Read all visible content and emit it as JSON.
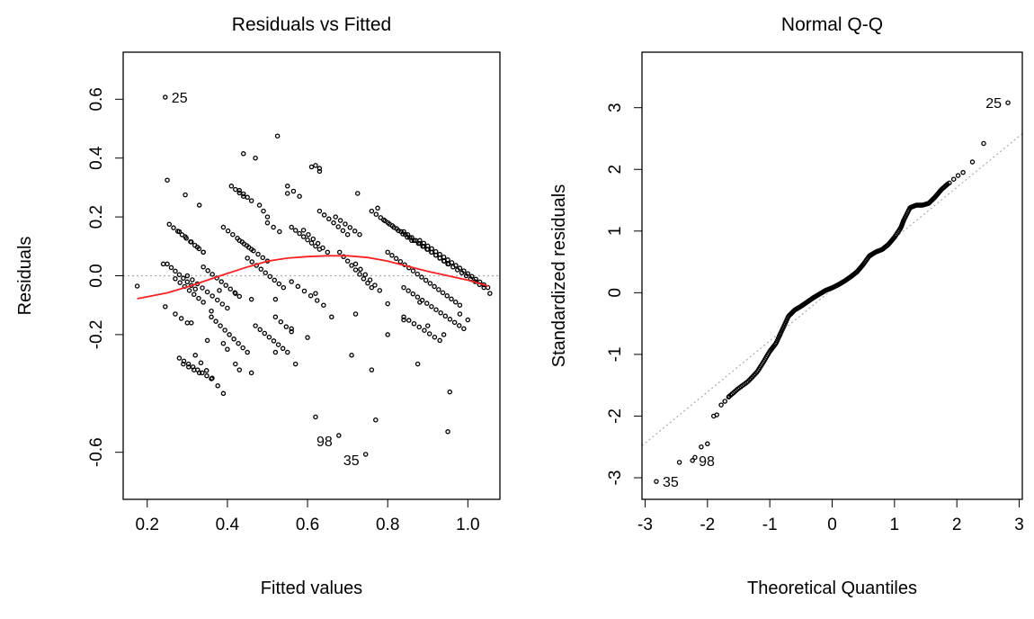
{
  "chart_data": [
    {
      "type": "scatter",
      "title": "Residuals vs Fitted",
      "xlabel": "Fitted values",
      "ylabel": "Residuals",
      "xlim": [
        0.14,
        1.08
      ],
      "ylim": [
        -0.76,
        0.76
      ],
      "xticks": [
        "0.2",
        "0.4",
        "0.6",
        "0.8",
        "1.0"
      ],
      "xtick_values": [
        0.2,
        0.4,
        0.6,
        0.8,
        1.0
      ],
      "yticks": [
        "-0.6",
        "-0.2",
        "0.0",
        "0.2",
        "0.4",
        "0.6"
      ],
      "ytick_values": [
        -0.6,
        -0.2,
        0.0,
        0.2,
        0.4,
        0.6
      ],
      "reference_line": {
        "y": 0,
        "style": "dotted",
        "color": "#aaaaaa"
      },
      "smoother": {
        "color": "#ff2020",
        "points": [
          [
            0.175,
            -0.078
          ],
          [
            0.25,
            -0.058
          ],
          [
            0.3,
            -0.038
          ],
          [
            0.35,
            -0.015
          ],
          [
            0.4,
            0.008
          ],
          [
            0.45,
            0.03
          ],
          [
            0.5,
            0.05
          ],
          [
            0.55,
            0.06
          ],
          [
            0.6,
            0.065
          ],
          [
            0.65,
            0.068
          ],
          [
            0.7,
            0.068
          ],
          [
            0.75,
            0.062
          ],
          [
            0.8,
            0.05
          ],
          [
            0.85,
            0.032
          ],
          [
            0.9,
            0.015
          ],
          [
            0.95,
            0.0
          ],
          [
            1.0,
            -0.015
          ],
          [
            1.05,
            -0.035
          ]
        ]
      },
      "point_labels": [
        {
          "label": "25",
          "x": 0.245,
          "y": 0.607
        },
        {
          "label": "98",
          "x": 0.678,
          "y": -0.543
        },
        {
          "label": "35",
          "x": 0.745,
          "y": -0.607
        }
      ],
      "series": [
        {
          "points": [
            [
              0.175,
              -0.035
            ],
            [
              0.245,
              0.607
            ],
            [
              0.25,
              0.325
            ],
            [
              0.24,
              0.04
            ],
            [
              0.245,
              -0.105
            ],
            [
              0.295,
              0.275
            ],
            [
              0.33,
              0.24
            ],
            [
              0.44,
              0.415
            ],
            [
              0.47,
              0.4
            ],
            [
              0.525,
              0.475
            ],
            [
              0.55,
              0.28
            ],
            [
              0.62,
              0.375
            ],
            [
              0.63,
              0.365
            ],
            [
              0.725,
              0.28
            ],
            [
              0.775,
              0.23
            ],
            [
              0.62,
              -0.06
            ],
            [
              0.8,
              -0.095
            ],
            [
              0.875,
              -0.3
            ],
            [
              0.955,
              -0.395
            ],
            [
              0.95,
              -0.53
            ],
            [
              0.62,
              -0.48
            ],
            [
              0.678,
              -0.543
            ],
            [
              0.745,
              -0.607
            ],
            [
              0.77,
              -0.49
            ],
            [
              1.055,
              -0.06
            ],
            [
              0.71,
              -0.27
            ],
            [
              0.76,
              -0.32
            ],
            [
              0.52,
              -0.26
            ],
            [
              0.57,
              -0.3
            ],
            [
              0.46,
              -0.33
            ],
            [
              0.35,
              -0.22
            ],
            [
              0.31,
              -0.16
            ],
            [
              0.36,
              -0.12
            ],
            [
              0.8,
              -0.2
            ],
            [
              0.84,
              -0.15
            ],
            [
              0.9,
              -0.17
            ],
            [
              0.94,
              -0.2
            ],
            [
              0.98,
              -0.13
            ],
            [
              1.0,
              -0.15
            ],
            [
              0.88,
              -0.09
            ],
            [
              0.56,
              -0.18
            ],
            [
              0.6,
              -0.21
            ],
            [
              0.66,
              -0.14
            ],
            [
              0.72,
              -0.13
            ],
            [
              0.52,
              -0.08
            ],
            [
              0.46,
              -0.08
            ],
            [
              0.42,
              -0.06
            ],
            [
              0.38,
              -0.05
            ]
          ]
        },
        {
          "segments": [
            {
              "x0": 0.255,
              "y0": 0.175,
              "x1": 0.34,
              "y1": 0.08,
              "n": 9
            },
            {
              "x0": 0.28,
              "y0": 0.15,
              "x1": 0.34,
              "y1": 0.08,
              "n": 5
            },
            {
              "x0": 0.25,
              "y0": 0.04,
              "x1": 0.32,
              "y1": -0.045,
              "n": 8
            },
            {
              "x0": 0.27,
              "y0": -0.01,
              "x1": 0.34,
              "y1": -0.09,
              "n": 7
            },
            {
              "x0": 0.3,
              "y0": 0.0,
              "x1": 0.4,
              "y1": -0.11,
              "n": 9
            },
            {
              "x0": 0.27,
              "y0": -0.13,
              "x1": 0.3,
              "y1": -0.16,
              "n": 3
            },
            {
              "x0": 0.28,
              "y0": -0.28,
              "x1": 0.36,
              "y1": -0.35,
              "n": 8
            },
            {
              "x0": 0.32,
              "y0": -0.27,
              "x1": 0.39,
              "y1": -0.4,
              "n": 6
            },
            {
              "x0": 0.34,
              "y0": 0.03,
              "x1": 0.43,
              "y1": -0.07,
              "n": 9
            },
            {
              "x0": 0.36,
              "y0": -0.14,
              "x1": 0.45,
              "y1": -0.26,
              "n": 9
            },
            {
              "x0": 0.39,
              "y0": -0.23,
              "x1": 0.4,
              "y1": -0.25,
              "n": 2
            },
            {
              "x0": 0.41,
              "y0": 0.305,
              "x1": 0.44,
              "y1": 0.27,
              "n": 4
            },
            {
              "x0": 0.43,
              "y0": 0.29,
              "x1": 0.46,
              "y1": 0.255,
              "n": 4
            },
            {
              "x0": 0.39,
              "y0": 0.165,
              "x1": 0.46,
              "y1": 0.09,
              "n": 7
            },
            {
              "x0": 0.43,
              "y0": 0.12,
              "x1": 0.5,
              "y1": 0.05,
              "n": 7
            },
            {
              "x0": 0.45,
              "y0": 0.06,
              "x1": 0.54,
              "y1": -0.04,
              "n": 9
            },
            {
              "x0": 0.48,
              "y0": 0.24,
              "x1": 0.5,
              "y1": 0.2,
              "n": 3
            },
            {
              "x0": 0.5,
              "y0": 0.18,
              "x1": 0.53,
              "y1": 0.15,
              "n": 3
            },
            {
              "x0": 0.55,
              "y0": 0.305,
              "x1": 0.58,
              "y1": 0.27,
              "n": 3
            },
            {
              "x0": 0.56,
              "y0": 0.165,
              "x1": 0.63,
              "y1": 0.09,
              "n": 8
            },
            {
              "x0": 0.59,
              "y0": 0.155,
              "x1": 0.65,
              "y1": 0.08,
              "n": 6
            },
            {
              "x0": 0.61,
              "y0": 0.37,
              "x1": 0.63,
              "y1": 0.355,
              "n": 2
            },
            {
              "x0": 0.63,
              "y0": 0.22,
              "x1": 0.7,
              "y1": 0.14,
              "n": 7
            },
            {
              "x0": 0.67,
              "y0": 0.2,
              "x1": 0.73,
              "y1": 0.14,
              "n": 6
            },
            {
              "x0": 0.68,
              "y0": 0.08,
              "x1": 0.76,
              "y1": -0.04,
              "n": 9
            },
            {
              "x0": 0.72,
              "y0": 0.04,
              "x1": 0.78,
              "y1": -0.05,
              "n": 6
            },
            {
              "x0": 0.76,
              "y0": 0.22,
              "x1": 0.86,
              "y1": 0.12,
              "n": 10
            },
            {
              "x0": 0.79,
              "y0": 0.19,
              "x1": 0.92,
              "y1": 0.07,
              "n": 13
            },
            {
              "x0": 0.84,
              "y0": 0.15,
              "x1": 0.95,
              "y1": 0.04,
              "n": 12
            },
            {
              "x0": 0.88,
              "y0": 0.12,
              "x1": 1.05,
              "y1": -0.04,
              "n": 18
            },
            {
              "x0": 0.93,
              "y0": 0.06,
              "x1": 1.04,
              "y1": -0.04,
              "n": 11
            },
            {
              "x0": 0.8,
              "y0": 0.08,
              "x1": 0.98,
              "y1": -0.1,
              "n": 18
            },
            {
              "x0": 0.84,
              "y0": -0.04,
              "x1": 0.99,
              "y1": -0.18,
              "n": 14
            },
            {
              "x0": 0.84,
              "y0": -0.14,
              "x1": 0.93,
              "y1": -0.22,
              "n": 8
            },
            {
              "x0": 0.56,
              "y0": -0.02,
              "x1": 0.64,
              "y1": -0.1,
              "n": 6
            },
            {
              "x0": 0.47,
              "y0": -0.17,
              "x1": 0.55,
              "y1": -0.26,
              "n": 8
            },
            {
              "x0": 0.52,
              "y0": -0.14,
              "x1": 0.56,
              "y1": -0.19,
              "n": 4
            },
            {
              "x0": 0.42,
              "y0": -0.3,
              "x1": 0.43,
              "y1": -0.32,
              "n": 2
            },
            {
              "x0": 0.29,
              "y0": -0.3,
              "x1": 0.33,
              "y1": -0.33,
              "n": 4
            }
          ]
        }
      ]
    },
    {
      "type": "scatter",
      "title": "Normal Q-Q",
      "xlabel": "Theoretical Quantiles",
      "ylabel": "Standardized residuals",
      "xlim": [
        -3.05,
        3.05
      ],
      "ylim": [
        -3.35,
        3.9
      ],
      "xticks": [
        "-3",
        "-2",
        "-1",
        "0",
        "1",
        "2",
        "3"
      ],
      "xtick_values": [
        -3,
        -2,
        -1,
        0,
        1,
        2,
        3
      ],
      "yticks": [
        "-3",
        "-2",
        "-1",
        "0",
        "1",
        "2",
        "3"
      ],
      "ytick_values": [
        -3,
        -2,
        -1,
        0,
        1,
        2,
        3
      ],
      "reference_line": {
        "x0": -3.05,
        "y0": -2.48,
        "x1": 3.05,
        "y1": 2.58,
        "style": "dotted",
        "color": "#aaaaaa"
      },
      "point_labels": [
        {
          "label": "25",
          "x": 2.82,
          "y": 3.08
        },
        {
          "label": "98",
          "x": -2.24,
          "y": -2.72
        },
        {
          "label": "35",
          "x": -2.82,
          "y": -3.06
        }
      ],
      "series": [
        {
          "points": [
            [
              -2.82,
              -3.06
            ],
            [
              -2.45,
              -2.75
            ],
            [
              -2.24,
              -2.72
            ],
            [
              -2.2,
              -2.67
            ],
            [
              -2.1,
              -2.5
            ],
            [
              -2.0,
              -2.45
            ],
            [
              -1.9,
              -2.0
            ],
            [
              -1.85,
              -1.98
            ],
            [
              -1.78,
              -1.82
            ],
            [
              -1.72,
              -1.76
            ],
            [
              -1.66,
              -1.69
            ],
            [
              2.82,
              3.08
            ],
            [
              2.43,
              2.42
            ],
            [
              2.25,
              2.12
            ],
            [
              2.1,
              1.95
            ],
            [
              2.02,
              1.9
            ],
            [
              1.95,
              1.84
            ],
            [
              1.88,
              1.78
            ]
          ]
        },
        {
          "curve": [
            [
              -1.65,
              -1.68
            ],
            [
              -1.5,
              -1.55
            ],
            [
              -1.35,
              -1.44
            ],
            [
              -1.2,
              -1.28
            ],
            [
              -1.1,
              -1.12
            ],
            [
              -1.0,
              -0.95
            ],
            [
              -0.9,
              -0.82
            ],
            [
              -0.8,
              -0.6
            ],
            [
              -0.7,
              -0.38
            ],
            [
              -0.6,
              -0.28
            ],
            [
              -0.5,
              -0.22
            ],
            [
              -0.4,
              -0.15
            ],
            [
              -0.3,
              -0.08
            ],
            [
              -0.2,
              -0.02
            ],
            [
              -0.1,
              0.04
            ],
            [
              0.0,
              0.08
            ],
            [
              0.1,
              0.13
            ],
            [
              0.2,
              0.19
            ],
            [
              0.3,
              0.26
            ],
            [
              0.4,
              0.34
            ],
            [
              0.5,
              0.46
            ],
            [
              0.6,
              0.6
            ],
            [
              0.7,
              0.66
            ],
            [
              0.8,
              0.7
            ],
            [
              0.9,
              0.78
            ],
            [
              1.0,
              0.9
            ],
            [
              1.1,
              1.05
            ],
            [
              1.15,
              1.18
            ],
            [
              1.25,
              1.38
            ],
            [
              1.35,
              1.42
            ],
            [
              1.45,
              1.42
            ],
            [
              1.55,
              1.45
            ],
            [
              1.65,
              1.55
            ],
            [
              1.75,
              1.67
            ],
            [
              1.85,
              1.76
            ]
          ],
          "n": 220
        }
      ]
    }
  ]
}
